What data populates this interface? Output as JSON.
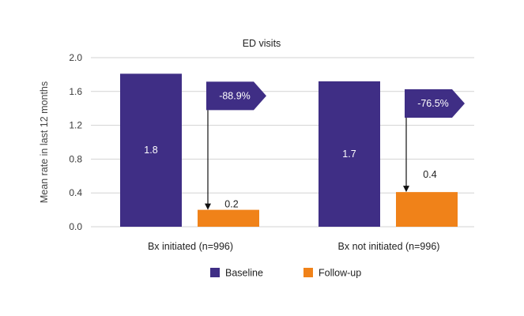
{
  "chart_data": {
    "type": "bar",
    "title": "ED visits",
    "xlabel": "",
    "ylabel": "Mean rate in last 12 months",
    "ylim": [
      0,
      2.0
    ],
    "yticks": [
      "0.0",
      "0.4",
      "0.8",
      "1.2",
      "1.6",
      "2.0"
    ],
    "ytick_values": [
      0,
      0.4,
      0.8,
      1.2,
      1.6,
      2.0
    ],
    "grid": true,
    "legend_position": "bottom-center",
    "categories": [
      "Bx initiated (n=996)",
      "Bx not initiated (n=996)"
    ],
    "series": [
      {
        "name": "Baseline",
        "color": "#3f2e85",
        "values": [
          1.81,
          1.72
        ],
        "labels": [
          "1.8",
          "1.7"
        ]
      },
      {
        "name": "Follow-up",
        "color": "#f08219",
        "values": [
          0.2,
          0.41
        ],
        "labels": [
          "0.2",
          "0.4"
        ]
      }
    ],
    "annotations": [
      {
        "category_index": 0,
        "text": "-88.9%"
      },
      {
        "category_index": 1,
        "text": "-76.5%"
      }
    ]
  }
}
